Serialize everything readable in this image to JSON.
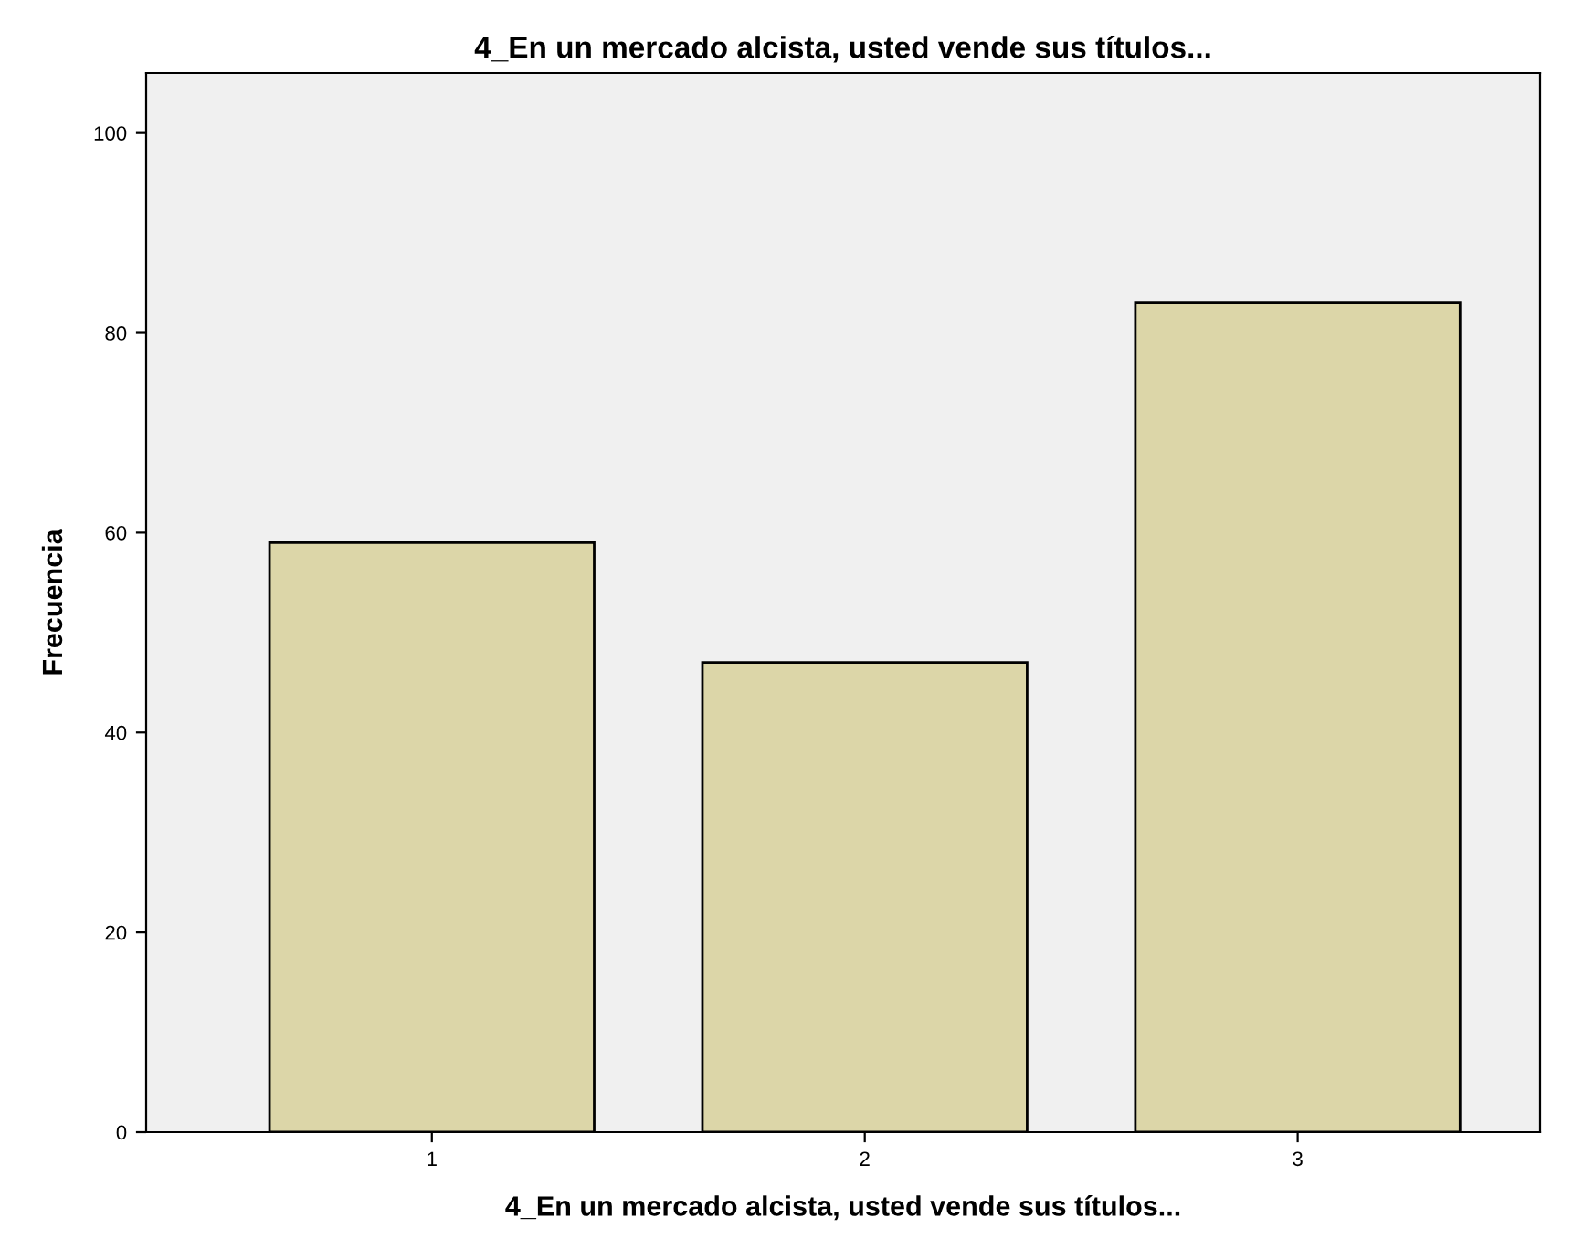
{
  "chart_data": {
    "type": "bar",
    "title": "4_En un mercado alcista, usted vende sus títulos...",
    "xlabel": "4_En un mercado alcista, usted vende sus títulos...",
    "ylabel": "Frecuencia",
    "categories": [
      "1",
      "2",
      "3"
    ],
    "values": [
      59,
      47,
      83
    ],
    "color": "#dcd6a8",
    "ylim": [
      0,
      106
    ],
    "yticks": [
      0,
      20,
      40,
      60,
      80,
      100
    ],
    "grid": false,
    "legend": false
  }
}
